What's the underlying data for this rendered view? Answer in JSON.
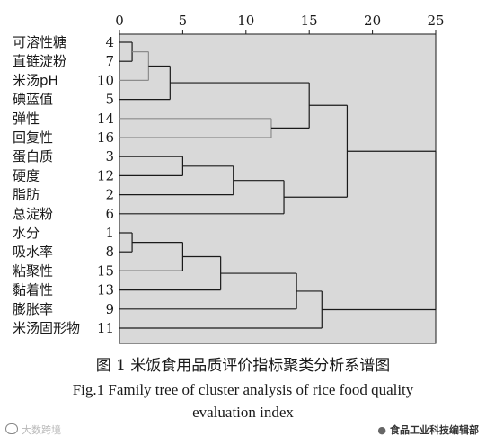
{
  "chart_data": {
    "type": "dendrogram",
    "x_ticks": [
      0,
      5,
      10,
      15,
      20,
      25
    ],
    "xlim": [
      0,
      25
    ],
    "leaves": [
      {
        "name": "可溶性糖",
        "id": "4"
      },
      {
        "name": "直链淀粉",
        "id": "7"
      },
      {
        "name": "米汤pH",
        "id": "10"
      },
      {
        "name": "碘蓝值",
        "id": "5"
      },
      {
        "name": "弹性",
        "id": "14"
      },
      {
        "name": "回复性",
        "id": "16"
      },
      {
        "name": "蛋白质",
        "id": "3"
      },
      {
        "name": "硬度",
        "id": "12"
      },
      {
        "name": "脂肪",
        "id": "2"
      },
      {
        "name": "总淀粉",
        "id": "6"
      },
      {
        "name": "水分",
        "id": "1"
      },
      {
        "name": "吸水率",
        "id": "8"
      },
      {
        "name": "粘聚性",
        "id": "15"
      },
      {
        "name": "黏着性",
        "id": "13"
      },
      {
        "name": "膨胀率",
        "id": "9"
      },
      {
        "name": "米汤固形物",
        "id": "11"
      }
    ],
    "merges": [
      {
        "a": "L0",
        "b": "L1",
        "distance": 1.0
      },
      {
        "a": "L10",
        "b": "L11",
        "distance": 1.0
      },
      {
        "a": "M0",
        "b": "L2",
        "distance": 2.3
      },
      {
        "a": "M2",
        "b": "L3",
        "distance": 4.0
      },
      {
        "a": "M1",
        "b": "L12",
        "distance": 5.0
      },
      {
        "a": "L6",
        "b": "L7",
        "distance": 5.0
      },
      {
        "a": "M4",
        "b": "L13",
        "distance": 8.0
      },
      {
        "a": "M5",
        "b": "L8",
        "distance": 9.0
      },
      {
        "a": "L4",
        "b": "L5",
        "distance": 12.0
      },
      {
        "a": "M6",
        "b": "L14",
        "distance": 14.0
      },
      {
        "a": "M7",
        "b": "L9",
        "distance": 13.0
      },
      {
        "a": "M3",
        "b": "M8",
        "distance": 15.0
      },
      {
        "a": "M9",
        "b": "L15",
        "distance": 16.0
      },
      {
        "a": "M11",
        "b": "M10",
        "distance": 18.0
      },
      {
        "a": "M13",
        "b": "M12",
        "distance": 25.0
      }
    ]
  },
  "caption": {
    "zh": "图 1   米饭食用品质评价指标聚类分析系谱图",
    "en_line1": "Fig.1    Family tree of cluster analysis of rice food quality",
    "en_line2": "evaluation index"
  },
  "watermarks": {
    "left": "大数跨境",
    "right": "食品工业科技编辑部"
  },
  "colors": {
    "plot_bg": "#d9d9d9",
    "line": "#1a1a1a",
    "highlight": "#8c8c8c"
  }
}
